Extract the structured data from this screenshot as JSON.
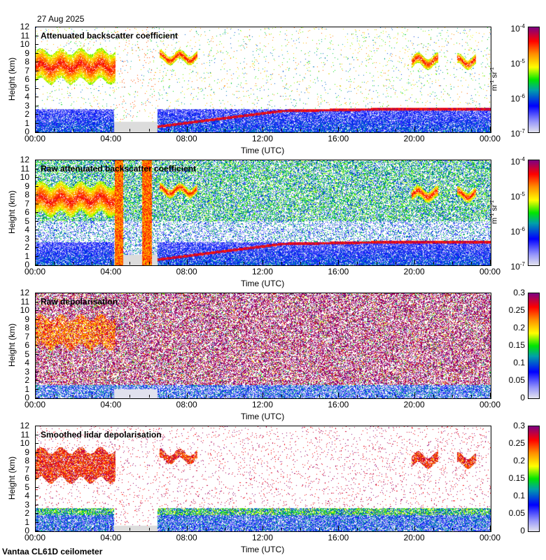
{
  "header": {
    "date": "27 Aug 2025"
  },
  "footer": {
    "label": "Vantaa CL61D ceilometer"
  },
  "chart_data": [
    {
      "type": "heatmap",
      "title": "Attenuated backscatter coefficient",
      "xlabel": "Time (UTC)",
      "ylabel": "Height (km)",
      "xlim": [
        0,
        24
      ],
      "ylim": [
        0,
        12
      ],
      "xticks": [
        "00:00",
        "04:00",
        "08:00",
        "12:00",
        "16:00",
        "20:00",
        "00:00"
      ],
      "yticks": [
        "0",
        "1",
        "2",
        "3",
        "4",
        "5",
        "6",
        "7",
        "8",
        "9",
        "10",
        "11",
        "12"
      ],
      "colorbar": {
        "scale": "log",
        "unit": {
          "base": "m",
          "e1": "-1",
          "mid": " sr",
          "e2": "-1"
        },
        "range": [
          1e-07,
          0.0001
        ],
        "ticks": [
          {
            "base": "10",
            "exp": "-4"
          },
          {
            "base": "10",
            "exp": "-5"
          },
          {
            "base": "10",
            "exp": "-6"
          },
          {
            "base": "10",
            "exp": "-7"
          }
        ]
      },
      "variant": "att"
    },
    {
      "type": "heatmap",
      "title": "Raw attenuated backscatter coefficient",
      "xlabel": "Time (UTC)",
      "ylabel": "Height (km)",
      "xlim": [
        0,
        24
      ],
      "ylim": [
        0,
        12
      ],
      "xticks": [
        "00:00",
        "04:00",
        "08:00",
        "12:00",
        "16:00",
        "20:00",
        "00:00"
      ],
      "yticks": [
        "0",
        "1",
        "2",
        "3",
        "4",
        "5",
        "6",
        "7",
        "8",
        "9",
        "10",
        "11",
        "12"
      ],
      "colorbar": {
        "scale": "log",
        "unit": {
          "base": "m",
          "e1": "-1",
          "mid": " sr",
          "e2": "-1"
        },
        "range": [
          1e-07,
          0.0001
        ],
        "ticks": [
          {
            "base": "10",
            "exp": "-4"
          },
          {
            "base": "10",
            "exp": "-5"
          },
          {
            "base": "10",
            "exp": "-6"
          },
          {
            "base": "10",
            "exp": "-7"
          }
        ]
      },
      "variant": "raw"
    },
    {
      "type": "heatmap",
      "title": "Raw depolarisation",
      "xlabel": "Time (UTC)",
      "ylabel": "Height (km)",
      "xlim": [
        0,
        24
      ],
      "ylim": [
        0,
        12
      ],
      "xticks": [
        "00:00",
        "04:00",
        "08:00",
        "12:00",
        "16:00",
        "20:00",
        "00:00"
      ],
      "yticks": [
        "0",
        "1",
        "2",
        "3",
        "4",
        "5",
        "6",
        "7",
        "8",
        "9",
        "10",
        "11",
        "12"
      ],
      "colorbar": {
        "scale": "linear",
        "range": [
          0,
          0.3
        ],
        "ticks": [
          {
            "base": "0.3"
          },
          {
            "base": "0.25"
          },
          {
            "base": "0.2"
          },
          {
            "base": "0.15"
          },
          {
            "base": "0.1"
          },
          {
            "base": "0.05"
          },
          {
            "base": "0"
          }
        ]
      },
      "variant": "rawdep"
    },
    {
      "type": "heatmap",
      "title": "Smoothed lidar depolarisation",
      "xlabel": "Time (UTC)",
      "ylabel": "Height (km)",
      "xlim": [
        0,
        24
      ],
      "ylim": [
        0,
        12
      ],
      "xticks": [
        "00:00",
        "04:00",
        "08:00",
        "12:00",
        "16:00",
        "20:00",
        "00:00"
      ],
      "yticks": [
        "0",
        "1",
        "2",
        "3",
        "4",
        "5",
        "6",
        "7",
        "8",
        "9",
        "10",
        "11",
        "12"
      ],
      "colorbar": {
        "scale": "linear",
        "range": [
          0,
          0.3
        ],
        "ticks": [
          {
            "base": "0.3"
          },
          {
            "base": "0.25"
          },
          {
            "base": "0.2"
          },
          {
            "base": "0.15"
          },
          {
            "base": "0.1"
          },
          {
            "base": "0.05"
          },
          {
            "base": "0"
          }
        ]
      },
      "variant": "smdep"
    }
  ],
  "features": {
    "cirrus_layers": [
      {
        "t": [
          0,
          4.2
        ],
        "h": [
          5.8,
          9.2
        ]
      },
      {
        "t": [
          6.5,
          8.5
        ],
        "h": [
          8,
          9
        ]
      },
      {
        "t": [
          19.8,
          21.2
        ],
        "h": [
          7.5,
          8.7
        ]
      },
      {
        "t": [
          22.2,
          23.2
        ],
        "h": [
          7.5,
          8.6
        ]
      }
    ],
    "boundary_layer_top": [
      {
        "t": 4.2,
        "h": 0
      },
      {
        "t": 13,
        "h": 2.4
      },
      {
        "t": 18.5,
        "h": 2.6
      }
    ],
    "data_gap": [
      4.1,
      6.4
    ]
  }
}
